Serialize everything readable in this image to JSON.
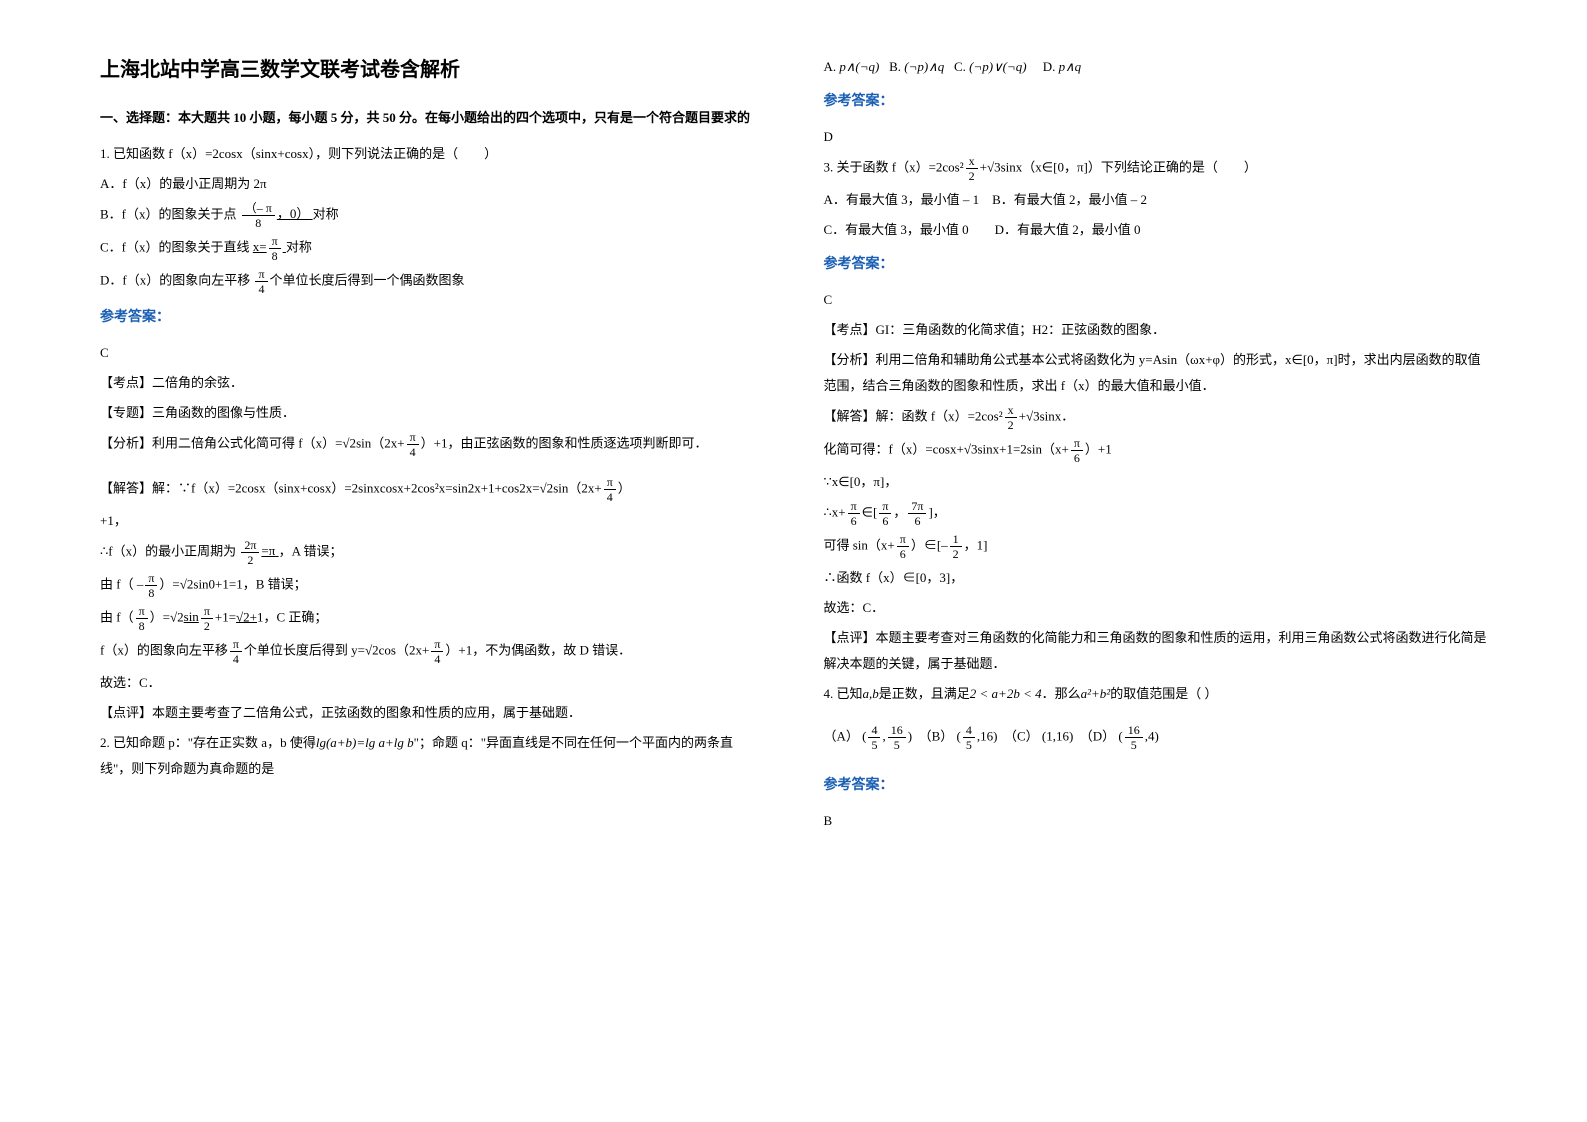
{
  "left": {
    "title": "上海北站中学高三数学文联考试卷含解析",
    "section": "一、选择题：本大题共 10 小题，每小题 5 分，共 50 分。在每小题给出的四个选项中，只有是一个符合题目要求的",
    "q1_stem": "1. 已知函数 f（x）=2cosx（sinx+cosx），则下列说法正确的是（　　）",
    "q1_A": "A．f（x）的最小正周期为 2π",
    "q1_B_pre": "B．f（x）的图象关于点",
    "q1_B_frac_num": "（– π",
    "q1_B_frac_den": "8",
    "q1_B_post": "，0）",
    "q1_B_tail": "对称",
    "q1_C_pre": "C．f（x）的图象关于直线",
    "q1_C_fn": "x=",
    "q1_C_num": "π",
    "q1_C_den": "8",
    "q1_C_post": "对称",
    "q1_D_pre": "D．f（x）的图象向左平移",
    "q1_D_num": "π",
    "q1_D_den": "4",
    "q1_D_post": "个单位长度后得到一个偶函数图象",
    "ans": "参考答案：",
    "q1_ans": "C",
    "q1_kd": "【考点】二倍角的余弦．",
    "q1_zt": "【专题】三角函数的图像与性质．",
    "q1_fx_pre": "【分析】利用二倍角公式化简可得 f（x）=",
    "q1_fx_sq2": "√2",
    "q1_fx_mid": "sin（2x+",
    "q1_fx_num": "π",
    "q1_fx_den": "4",
    "q1_fx_post": "）+1，由正弦函数的图象和性质逐选项判断即可．",
    "q1_jd_pre": "【解答】解：∵f（x）=2cosx（sinx+cosx）=2sinxcosx+2cos²x=sin2x+1+cos2x=",
    "q1_jd_sq2": "√2",
    "q1_jd_mid": "sin（2x+",
    "q1_jd_num": "π",
    "q1_jd_den": "4",
    "q1_jd_post": "）",
    "q1_jd_plus1": "+1，",
    "q1_line_a_pre": "∴f（x）的最小正周期为",
    "q1_la_num": "2π",
    "q1_la_den": "2",
    "q1_la_eq": "=π",
    "q1_la_post": "，A 错误；",
    "q1_line_b_pre": "由 f（ –",
    "q1_lb_num": "π",
    "q1_lb_den": "8",
    "q1_lb_mid": "）=",
    "q1_lb_sq2": "√2",
    "q1_lb_post": "sin0+1=1，B 错误；",
    "q1_line_c_pre": "由 f（",
    "q1_lc_num": "π",
    "q1_lc_den": "8",
    "q1_lc_mid": "）=",
    "q1_lc_sq2": "√2",
    "q1_lc_sin": "sin",
    "q1_lc_num2": "π",
    "q1_lc_den2": "2",
    "q1_lc_plus": "+1=",
    "q1_lc_sq2b": "√2+",
    "q1_lc_post": "1，C 正确；",
    "q1_line_d_pre": "f（x）的图象向左平移",
    "q1_ld_num": "π",
    "q1_ld_den": "4",
    "q1_ld_mid": "个单位长度后得到 y=",
    "q1_ld_sq2": "√2",
    "q1_ld_cos": "cos（2x+",
    "q1_ld_num2": "π",
    "q1_ld_den2": "4",
    "q1_ld_post": "）+1，不为偶函数，故 D 错误．",
    "q1_gx": "故选：C．",
    "q1_dp": "【点评】本题主要考查了二倍角公式，正弦函数的图象和性质的应用，属于基础题．",
    "q2_stem_a": "2. 已知命题 p：\"存在正实数 a，b 使得",
    "q2_lg": "lg(a+b)=lg a+lg b",
    "q2_stem_b": "\"；命题 q：\"异面直线是不同在任何一个平面内的两条直线\"，则下列命题为真命题的是"
  },
  "right": {
    "q2_A_pre": "A.",
    "q2_A": "p∧(¬q)",
    "q2_B_pre": "B.",
    "q2_B": "(¬p)∧q",
    "q2_C_pre": "C.",
    "q2_C": "(¬p)∨(¬q)",
    "q2_D_pre": "D.",
    "q2_D": "p∧q",
    "ans": "参考答案：",
    "q2_ans": "D",
    "q3_pre": "3. 关于函数 f（x）=2cos²",
    "q3_num": "x",
    "q3_den": "2",
    "q3_mid": "+",
    "q3_sq3": "√3",
    "q3_post": "sinx（x∈[0，π]）下列结论正确的是（　　）",
    "q3_A": "A．有最大值 3，最小值 – 1　B．有最大值 2，最小值 – 2",
    "q3_C": "C．有最大值 3，最小值 0　　D．有最大值 2，最小值 0",
    "q3_ans": "C",
    "q3_kd": "【考点】GI：三角函数的化简求值；H2：正弦函数的图象．",
    "q3_fx": "【分析】利用二倍角和辅助角公式基本公式将函数化为 y=Asin（ωx+φ）的形式，x∈[0，π]时，求出内层函数的取值范围，结合三角函数的图象和性质，求出 f（x）的最大值和最小值．",
    "q3_jd_pre": "【解答】解：函数 f（x）=2cos²",
    "q3_jd_num": "x",
    "q3_jd_den": "2",
    "q3_jd_mid": "+",
    "q3_jd_sq3": "√3",
    "q3_jd_post": "sinx．",
    "q3_hl_pre": "化简可得：f（x）=cosx+",
    "q3_hl_sq3": "√3",
    "q3_hl_mid": "sinx+1=2sin（x+",
    "q3_hl_num": "π",
    "q3_hl_den": "6",
    "q3_hl_post": "）+1",
    "q3_r1": "∵x∈[0，π]，",
    "q3_r2_pre": "∴x+",
    "q3_r2_num": "π",
    "q3_r2_den": "6",
    "q3_r2_mid": "∈[",
    "q3_r2_num2": "π",
    "q3_r2_den2": "6",
    "q3_r2_comma": "，",
    "q3_r2_num3": "7π",
    "q3_r2_den3": "6",
    "q3_r2_post": "]，",
    "q3_r3_pre": "可得 sin（x+",
    "q3_r3_num": "π",
    "q3_r3_den": "6",
    "q3_r3_mid": "）∈[",
    "q3_r3_neg": "–",
    "q3_r3_num2": "1",
    "q3_r3_den2": "2",
    "q3_r3_post": "，1]",
    "q3_r4": "∴函数 f（x）∈[0，3]，",
    "q3_gx": "故选：C．",
    "q3_dp": "【点评】本题主要考查对三角函数的化简能力和三角函数的图象和性质的运用，利用三角函数公式将函数进行化简是解决本题的关键，属于基础题．",
    "q4_pre": "4. 已知",
    "q4_ab": "a,b",
    "q4_mid1": "是正数，且满足",
    "q4_ineq": "2 < a+2b < 4",
    "q4_mid2": "．那么",
    "q4_expr": "a²+b²",
    "q4_post": "的取值范围是（ ）",
    "q4_opts_A": "（A）",
    "q4_A_l": "(",
    "q4_A_n1": "4",
    "q4_A_d1": "5",
    "q4_A_c": ",",
    "q4_A_n2": "16",
    "q4_A_d2": "5",
    "q4_A_r": ")",
    "q4_opts_B": "（B）",
    "q4_B_l": "(",
    "q4_B_n1": "4",
    "q4_B_d1": "5",
    "q4_B_c": ",16)",
    "q4_opts_C": "（C）",
    "q4_C": "(1,16)",
    "q4_opts_D": "（D）",
    "q4_D_l": "(",
    "q4_D_n1": "16",
    "q4_D_d1": "5",
    "q4_D_c": ",4)",
    "q4_ans": "B"
  }
}
